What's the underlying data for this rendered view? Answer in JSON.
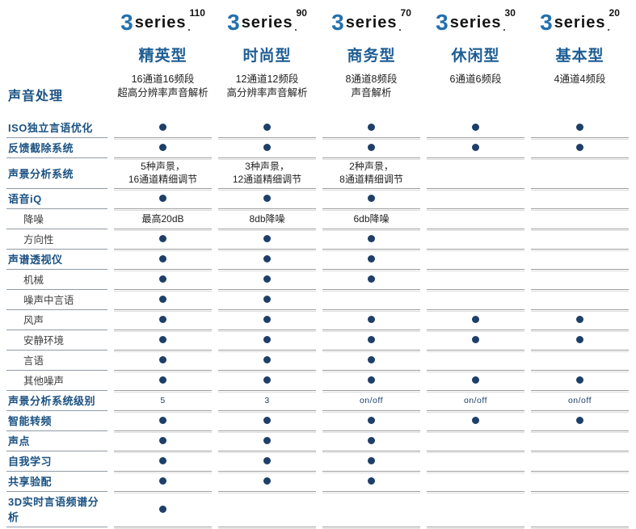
{
  "brand": {
    "prefix": "3",
    "name": "series"
  },
  "colors": {
    "accent_blue": "#1b5282",
    "model_blue": "#1d5d94",
    "logo_blue": "#2470ad",
    "dot_navy": "#1d3f68",
    "divider_gray": "#9e9e9e"
  },
  "header": {
    "section_label": "声音处理",
    "columns": [
      {
        "tier": "110",
        "model": "精英型",
        "channels": "16通道16频段\n超高分辨率声音解析"
      },
      {
        "tier": "90",
        "model": "时尚型",
        "channels": "12通道12频段\n高分辨率声音解析"
      },
      {
        "tier": "70",
        "model": "商务型",
        "channels": "8通道8频段\n声音解析"
      },
      {
        "tier": "30",
        "model": "休闲型",
        "channels": "6通道6频段"
      },
      {
        "tier": "20",
        "model": "基本型",
        "channels": "4通道4频段"
      }
    ]
  },
  "table": {
    "dot_marker": "dot",
    "rows": [
      {
        "label": "ISO独立言语优化",
        "style": "feature",
        "cells": [
          "dot",
          "dot",
          "dot",
          "dot",
          "dot"
        ]
      },
      {
        "label": "反馈截除系统",
        "style": "feature",
        "cells": [
          "dot",
          "dot",
          "dot",
          "dot",
          "dot"
        ]
      },
      {
        "label": "声景分析系统",
        "style": "feature",
        "cells": [
          "5种声景，\n16通道精细调节",
          "3种声景，\n12通道精细调节",
          "2种声景，\n8通道精细调节",
          "",
          ""
        ]
      },
      {
        "label": "语音iQ",
        "style": "feature",
        "cells": [
          "dot",
          "dot",
          "dot",
          "",
          ""
        ]
      },
      {
        "label": "降噪",
        "style": "sub",
        "cells": [
          "最高20dB",
          "8db降噪",
          "6db降噪",
          "",
          ""
        ]
      },
      {
        "label": "方向性",
        "style": "sub",
        "cells": [
          "dot",
          "dot",
          "dot",
          "",
          ""
        ]
      },
      {
        "label": "声谱透视仪",
        "style": "feature",
        "cells": [
          "dot",
          "dot",
          "dot",
          "",
          ""
        ]
      },
      {
        "label": "机械",
        "style": "sub",
        "cells": [
          "dot",
          "dot",
          "dot",
          "",
          ""
        ]
      },
      {
        "label": "噪声中言语",
        "style": "sub",
        "cells": [
          "dot",
          "dot",
          "",
          "",
          ""
        ]
      },
      {
        "label": "风声",
        "style": "sub",
        "cells": [
          "dot",
          "dot",
          "dot",
          "dot",
          "dot"
        ]
      },
      {
        "label": "安静环境",
        "style": "sub",
        "cells": [
          "dot",
          "dot",
          "dot",
          "dot",
          "dot"
        ]
      },
      {
        "label": "言语",
        "style": "sub",
        "cells": [
          "dot",
          "dot",
          "dot",
          "",
          ""
        ]
      },
      {
        "label": "其他噪声",
        "style": "sub",
        "cells": [
          "dot",
          "dot",
          "dot",
          "dot",
          "dot"
        ]
      },
      {
        "label": "声景分析系统级别",
        "style": "feature",
        "small_values": true,
        "cells": [
          "5",
          "3",
          "on/off",
          "on/off",
          "on/off"
        ]
      },
      {
        "label": "智能转频",
        "style": "feature",
        "cells": [
          "dot",
          "dot",
          "dot",
          "dot",
          "dot"
        ]
      },
      {
        "label": "声点",
        "style": "feature",
        "cells": [
          "dot",
          "dot",
          "dot",
          "",
          ""
        ]
      },
      {
        "label": "自我学习",
        "style": "feature",
        "cells": [
          "dot",
          "dot",
          "dot",
          "",
          ""
        ]
      },
      {
        "label": "共享验配",
        "style": "feature",
        "cells": [
          "dot",
          "dot",
          "dot",
          "",
          ""
        ]
      },
      {
        "label": "3D实时言语频谱分析",
        "style": "feature",
        "cells": [
          "dot",
          "",
          "",
          "",
          ""
        ]
      }
    ]
  }
}
